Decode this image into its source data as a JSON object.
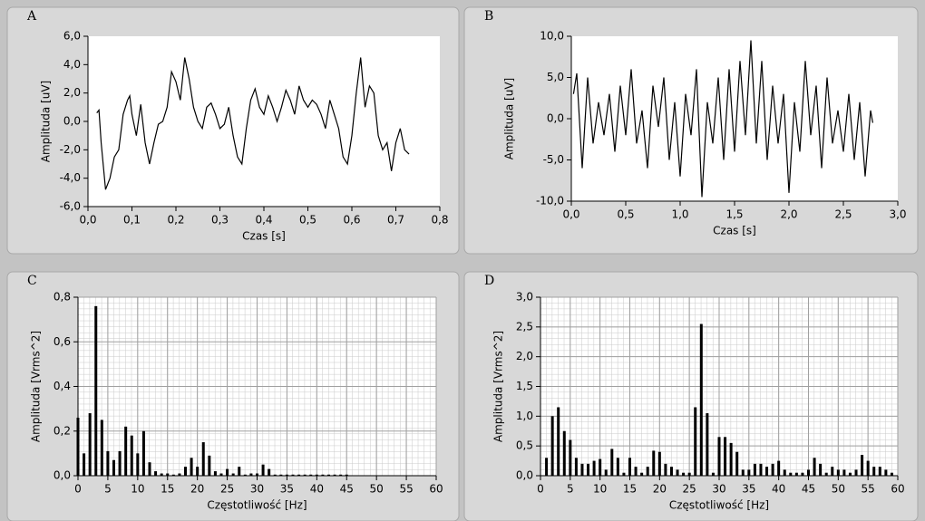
{
  "chart_data": [
    {
      "type": "line",
      "title": "A",
      "x_label": "Czas [s]",
      "y_label": "Amplituda [uV]",
      "color": "#000000",
      "x": [
        0.02,
        0.025,
        0.03,
        0.04,
        0.05,
        0.06,
        0.07,
        0.08,
        0.09,
        0.095,
        0.1,
        0.11,
        0.12,
        0.13,
        0.14,
        0.15,
        0.16,
        0.17,
        0.18,
        0.19,
        0.2,
        0.21,
        0.22,
        0.23,
        0.24,
        0.25,
        0.26,
        0.27,
        0.28,
        0.29,
        0.3,
        0.31,
        0.32,
        0.33,
        0.34,
        0.35,
        0.36,
        0.37,
        0.38,
        0.39,
        0.4,
        0.41,
        0.42,
        0.43,
        0.44,
        0.45,
        0.46,
        0.47,
        0.48,
        0.49,
        0.5,
        0.51,
        0.52,
        0.53,
        0.54,
        0.55,
        0.56,
        0.57,
        0.58,
        0.59,
        0.6,
        0.61,
        0.62,
        0.63,
        0.64,
        0.65,
        0.66,
        0.67,
        0.68,
        0.69,
        0.7,
        0.71,
        0.72,
        0.73
      ],
      "values": [
        0.6,
        0.8,
        -1.5,
        -4.8,
        -4.0,
        -2.5,
        -2.0,
        0.5,
        1.5,
        1.8,
        0.5,
        -1.0,
        1.2,
        -1.5,
        -3.0,
        -1.5,
        -0.2,
        0.0,
        1.0,
        3.5,
        2.8,
        1.5,
        4.5,
        3.0,
        1.0,
        0.0,
        -0.5,
        1.0,
        1.3,
        0.5,
        -0.5,
        -0.2,
        1.0,
        -1.0,
        -2.5,
        -3.0,
        -0.5,
        1.5,
        2.3,
        1.0,
        0.5,
        1.8,
        1.0,
        0.0,
        1.0,
        2.2,
        1.5,
        0.5,
        2.5,
        1.5,
        1.0,
        1.5,
        1.2,
        0.5,
        -0.5,
        1.5,
        0.5,
        -0.5,
        -2.5,
        -3.0,
        -1.0,
        2.0,
        4.5,
        1.0,
        2.5,
        2.0,
        -1.0,
        -2.0,
        -1.5,
        -3.5,
        -1.5,
        -0.5,
        -2.0,
        -2.3
      ],
      "xlim": [
        0,
        0.8
      ],
      "ylim": [
        -6,
        6
      ],
      "xticks": [
        {
          "value": 0,
          "label": "0,0"
        },
        {
          "value": 0.1,
          "label": "0,1"
        },
        {
          "value": 0.2,
          "label": "0,2"
        },
        {
          "value": 0.3,
          "label": "0,3"
        },
        {
          "value": 0.4,
          "label": "0,4"
        },
        {
          "value": 0.5,
          "label": "0,5"
        },
        {
          "value": 0.6,
          "label": "0,6"
        },
        {
          "value": 0.7,
          "label": "0,7"
        },
        {
          "value": 0.8,
          "label": "0,8"
        }
      ],
      "yticks": [
        {
          "value": -6,
          "label": "-6,0"
        },
        {
          "value": -4,
          "label": "-4,0"
        },
        {
          "value": -2,
          "label": "-2,0"
        },
        {
          "value": 0,
          "label": "0,0"
        },
        {
          "value": 2,
          "label": "2,0"
        },
        {
          "value": 4,
          "label": "4,0"
        },
        {
          "value": 6,
          "label": "6,0"
        }
      ],
      "grid": false
    },
    {
      "type": "line",
      "title": "B",
      "x_label": "Czas [s]",
      "y_label": "Amplituda [uV]",
      "color": "#000000",
      "x": [
        0.02,
        0.05,
        0.1,
        0.15,
        0.2,
        0.25,
        0.3,
        0.35,
        0.4,
        0.45,
        0.5,
        0.55,
        0.6,
        0.65,
        0.7,
        0.75,
        0.8,
        0.85,
        0.9,
        0.95,
        1.0,
        1.05,
        1.1,
        1.15,
        1.2,
        1.25,
        1.3,
        1.35,
        1.4,
        1.45,
        1.5,
        1.55,
        1.6,
        1.65,
        1.7,
        1.75,
        1.8,
        1.85,
        1.9,
        1.95,
        2.0,
        2.05,
        2.1,
        2.15,
        2.2,
        2.25,
        2.3,
        2.35,
        2.4,
        2.45,
        2.5,
        2.55,
        2.6,
        2.65,
        2.7,
        2.75,
        2.77
      ],
      "values": [
        3,
        5.5,
        -6,
        5,
        -3,
        2,
        -2,
        3,
        -4,
        4,
        -2,
        6,
        -3,
        1,
        -6,
        4,
        -1,
        5,
        -5,
        2,
        -7,
        3,
        -2,
        6,
        -9.5,
        2,
        -3,
        5,
        -5,
        6,
        -4,
        7,
        -2,
        9.5,
        -3,
        7,
        -5,
        4,
        -3,
        3,
        -9,
        2,
        -4,
        7,
        -2,
        4,
        -6,
        5,
        -3,
        1,
        -4,
        3,
        -5,
        2,
        -7,
        1,
        -0.5
      ],
      "xlim": [
        0,
        3
      ],
      "ylim": [
        -10,
        10
      ],
      "xticks": [
        {
          "value": 0,
          "label": "0,0"
        },
        {
          "value": 0.5,
          "label": "0,5"
        },
        {
          "value": 1,
          "label": "1,0"
        },
        {
          "value": 1.5,
          "label": "1,5"
        },
        {
          "value": 2,
          "label": "2,0"
        },
        {
          "value": 2.5,
          "label": "2,5"
        },
        {
          "value": 3,
          "label": "3,0"
        }
      ],
      "yticks": [
        {
          "value": -10,
          "label": "-10,0"
        },
        {
          "value": -5,
          "label": "-5,0"
        },
        {
          "value": 0,
          "label": "0,0"
        },
        {
          "value": 5,
          "label": "5,0"
        },
        {
          "value": 10,
          "label": "10,0"
        }
      ],
      "grid": false
    },
    {
      "type": "bar",
      "title": "C",
      "x_label": "Częstotliwość [Hz]",
      "y_label": "Amplituda [Vrms^2]",
      "color": "#000000",
      "x": [
        0,
        1,
        2,
        3,
        4,
        5,
        6,
        7,
        8,
        9,
        10,
        11,
        12,
        13,
        14,
        15,
        16,
        17,
        18,
        19,
        20,
        21,
        22,
        23,
        24,
        25,
        26,
        27,
        28,
        29,
        30,
        31,
        32,
        33,
        34,
        35,
        36,
        37,
        38,
        39,
        40,
        41,
        42,
        43,
        44,
        45
      ],
      "values": [
        0.26,
        0.1,
        0.28,
        0.76,
        0.25,
        0.11,
        0.07,
        0.11,
        0.22,
        0.18,
        0.1,
        0.2,
        0.06,
        0.02,
        0.01,
        0.01,
        0.005,
        0.01,
        0.04,
        0.08,
        0.04,
        0.15,
        0.09,
        0.02,
        0.01,
        0.03,
        0.01,
        0.04,
        0.005,
        0.01,
        0.01,
        0.05,
        0.03,
        0.005,
        0.005,
        0.005,
        0.005,
        0.005,
        0.005,
        0.005,
        0.005,
        0.005,
        0.005,
        0.005,
        0.005,
        0.005
      ],
      "xlim": [
        0,
        60
      ],
      "ylim": [
        0,
        0.8
      ],
      "xticks": [
        0,
        5,
        10,
        15,
        20,
        25,
        30,
        35,
        40,
        45,
        50,
        55,
        60
      ],
      "yticks": [
        {
          "value": 0,
          "label": "0,0"
        },
        {
          "value": 0.2,
          "label": "0,2"
        },
        {
          "value": 0.4,
          "label": "0,4"
        },
        {
          "value": 0.6,
          "label": "0,6"
        },
        {
          "value": 0.8,
          "label": "0,8"
        }
      ],
      "grid": true
    },
    {
      "type": "bar",
      "title": "D",
      "x_label": "Częstotliwość [Hz]",
      "y_label": "Amplituda [Vrms^2]",
      "color": "#000000",
      "x": [
        1,
        2,
        3,
        4,
        5,
        6,
        7,
        8,
        9,
        10,
        11,
        12,
        13,
        14,
        15,
        16,
        17,
        18,
        19,
        20,
        21,
        22,
        23,
        24,
        25,
        26,
        27,
        28,
        29,
        30,
        31,
        32,
        33,
        34,
        35,
        36,
        37,
        38,
        39,
        40,
        41,
        42,
        43,
        44,
        45,
        46,
        47,
        48,
        49,
        50,
        51,
        52,
        53,
        54,
        55,
        56,
        57,
        58,
        59
      ],
      "values": [
        0.3,
        1.0,
        1.15,
        0.75,
        0.6,
        0.3,
        0.2,
        0.2,
        0.25,
        0.28,
        0.1,
        0.45,
        0.3,
        0.05,
        0.3,
        0.15,
        0.05,
        0.15,
        0.42,
        0.4,
        0.2,
        0.15,
        0.1,
        0.05,
        0.05,
        1.15,
        2.55,
        1.05,
        0.05,
        0.65,
        0.65,
        0.55,
        0.4,
        0.1,
        0.1,
        0.2,
        0.2,
        0.15,
        0.2,
        0.25,
        0.1,
        0.05,
        0.05,
        0.05,
        0.1,
        0.3,
        0.2,
        0.05,
        0.15,
        0.1,
        0.1,
        0.05,
        0.1,
        0.35,
        0.25,
        0.15,
        0.15,
        0.1,
        0.05
      ],
      "xlim": [
        0,
        60
      ],
      "ylim": [
        0,
        3
      ],
      "xticks": [
        0,
        5,
        10,
        15,
        20,
        25,
        30,
        35,
        40,
        45,
        50,
        55,
        60
      ],
      "yticks": [
        {
          "value": 0,
          "label": "0,0"
        },
        {
          "value": 0.5,
          "label": "0,5"
        },
        {
          "value": 1,
          "label": "1,0"
        },
        {
          "value": 1.5,
          "label": "1,5"
        },
        {
          "value": 2,
          "label": "2,0"
        },
        {
          "value": 2.5,
          "label": "2,5"
        },
        {
          "value": 3,
          "label": "3,0"
        }
      ],
      "grid": true
    }
  ]
}
